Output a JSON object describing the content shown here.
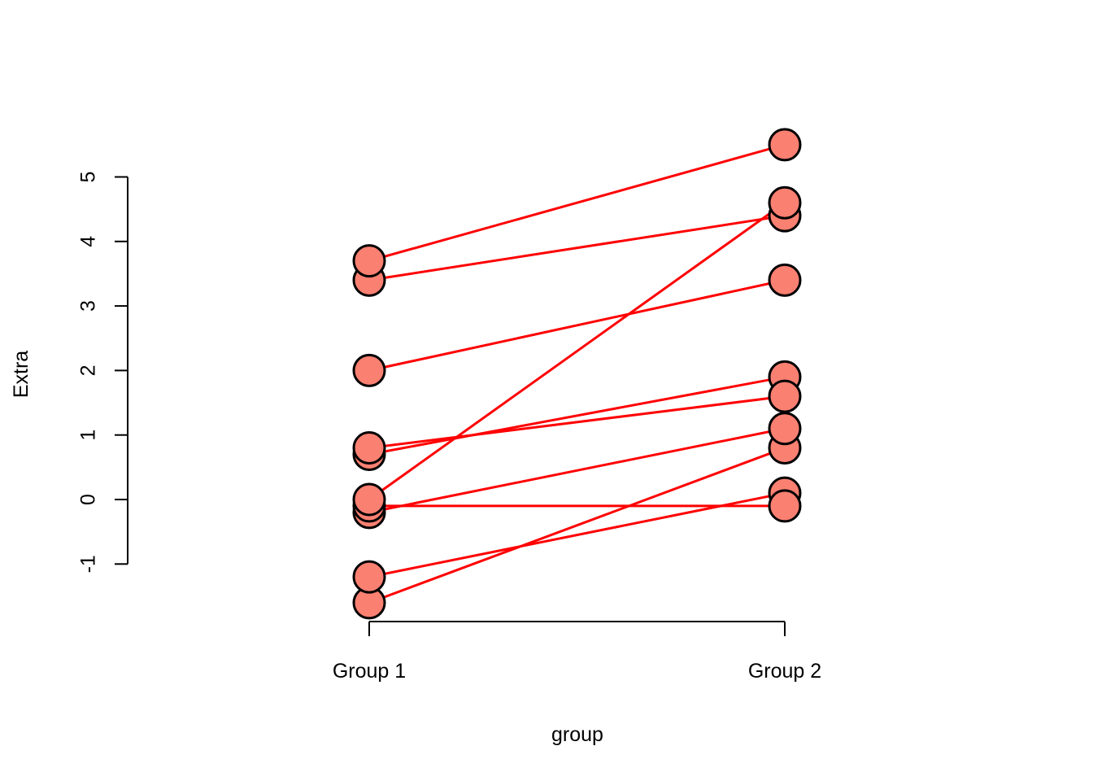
{
  "chart_data": {
    "type": "line",
    "xlabel": "group",
    "ylabel": "Extra",
    "categories": [
      "Group 1",
      "Group 2"
    ],
    "yticks": [
      -1,
      0,
      1,
      2,
      3,
      4,
      5
    ],
    "ylim": [
      -1.6,
      5.5
    ],
    "line_color": "#ff0000",
    "point_fill": "#fa8072",
    "point_stroke": "#000000",
    "pairs": [
      {
        "group1": 0.7,
        "group2": 1.9
      },
      {
        "group1": -1.6,
        "group2": 0.8
      },
      {
        "group1": -0.2,
        "group2": 1.1
      },
      {
        "group1": -1.2,
        "group2": 0.1
      },
      {
        "group1": -0.1,
        "group2": -0.1
      },
      {
        "group1": 3.4,
        "group2": 4.4
      },
      {
        "group1": 3.7,
        "group2": 5.5
      },
      {
        "group1": 0.8,
        "group2": 1.6
      },
      {
        "group1": 0.0,
        "group2": 4.6
      },
      {
        "group1": 2.0,
        "group2": 3.4
      }
    ]
  }
}
